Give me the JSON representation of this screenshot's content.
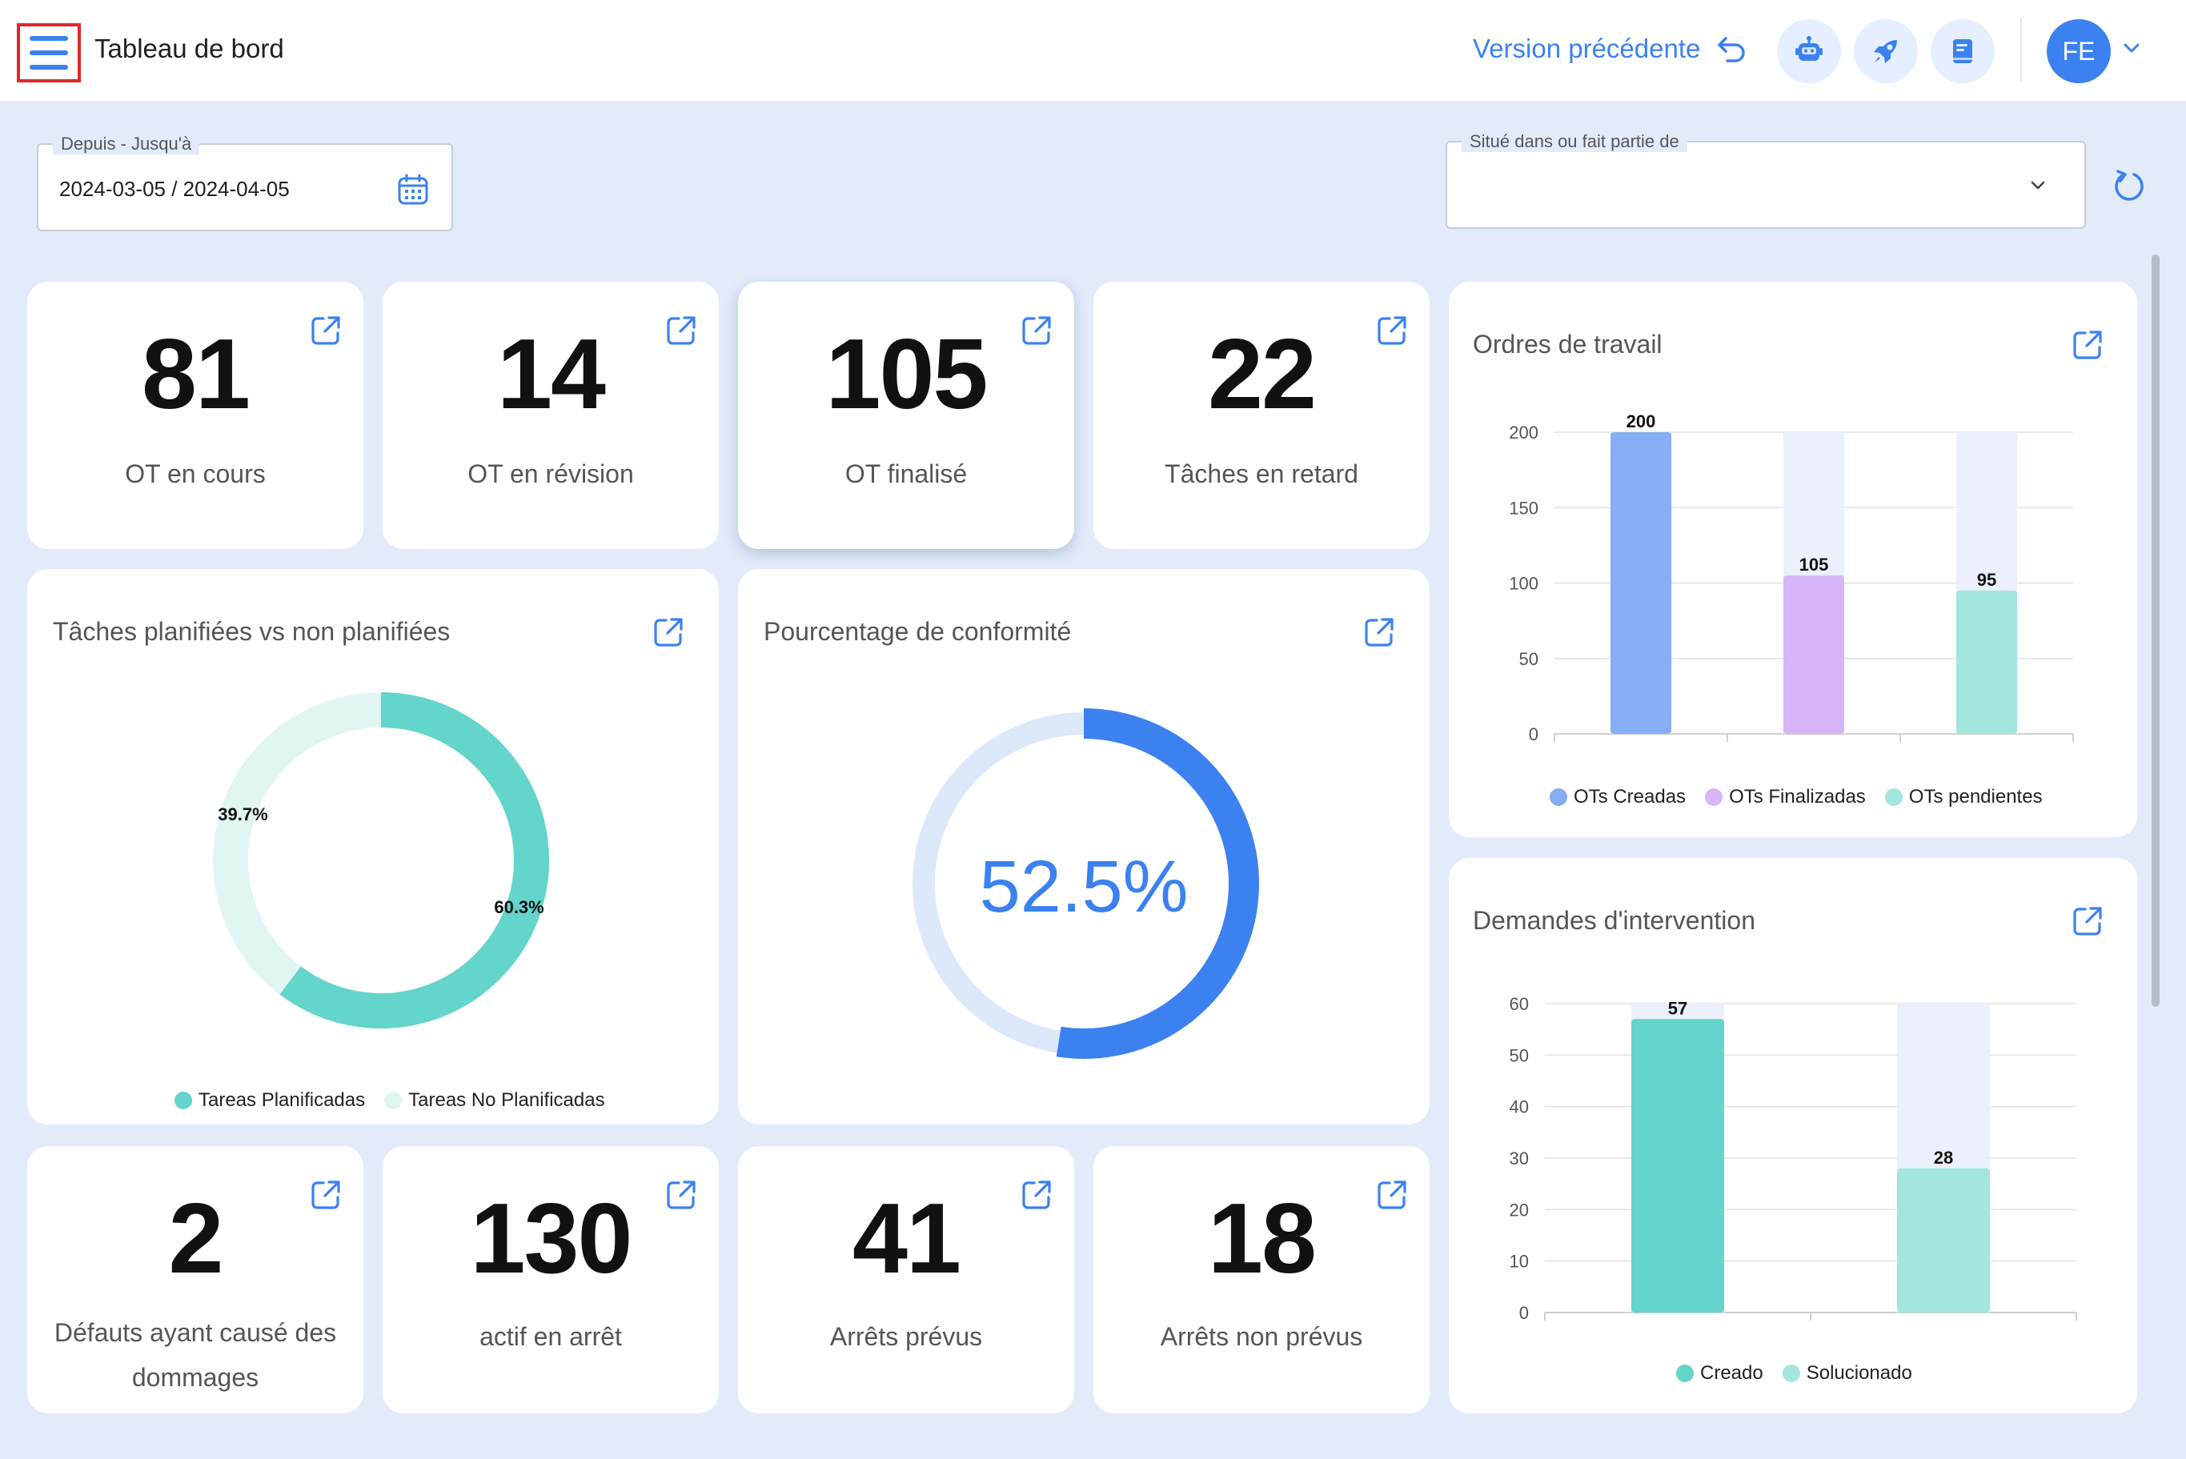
{
  "header": {
    "title": "Tableau de bord",
    "prev_version": "Version précédente",
    "avatar_initials": "FE",
    "menu_icon": "hamburger-menu-icon",
    "undo_icon": "undo-arrow-icon",
    "round_buttons": [
      "robot-icon",
      "rocket-icon",
      "book-icon"
    ]
  },
  "filters": {
    "date_range": {
      "label": "Depuis - Jusqu'à",
      "value": "2024-03-05 / 2024-04-05"
    },
    "location": {
      "label": "Situé dans ou fait partie de",
      "value": ""
    }
  },
  "kpis_top": [
    {
      "value": "81",
      "label": "OT en cours"
    },
    {
      "value": "14",
      "label": "OT en révision"
    },
    {
      "value": "105",
      "label": "OT finalisé"
    },
    {
      "value": "22",
      "label": "Tâches en retard"
    }
  ],
  "kpis_bottom": [
    {
      "value": "2",
      "label_line1": "Défauts ayant causé des",
      "label_line2": "dommages"
    },
    {
      "value": "130",
      "label": "actif en arrêt"
    },
    {
      "value": "41",
      "label": "Arrêts prévus"
    },
    {
      "value": "18",
      "label": "Arrêts non prévus"
    }
  ],
  "colors": {
    "accent": "#3b82f0",
    "teal": "#63d5cb",
    "teal_light": "#e1f5f3",
    "blue_bar": "#86aef5",
    "purple_bar": "#d8b5f9",
    "mint_bar": "#a3e6de",
    "track": "#ecf0fc",
    "gauge_track": "#dde8fb"
  },
  "planned_chart": {
    "title": "Tâches planifiées vs non planifiées",
    "legend": [
      "Tareas Planificadas",
      "Tareas No Planificadas"
    ]
  },
  "compliance": {
    "title": "Pourcentage de conformité",
    "value_text": "52.5%"
  },
  "work_orders_chart": {
    "title": "Ordres de travail",
    "legend": [
      "OTs Creadas",
      "OTs Finalizadas",
      "OTs pendientes"
    ]
  },
  "requests_chart": {
    "title": "Demandes d'intervention",
    "legend": [
      "Creado",
      "Solucionado"
    ]
  },
  "chart_data": [
    {
      "type": "pie",
      "title": "Tâches planifiées vs non planifiées",
      "categories": [
        "Tareas Planificadas",
        "Tareas No Planificadas"
      ],
      "values": [
        60.3,
        39.7
      ],
      "labels": [
        "60.3%",
        "39.7%"
      ]
    },
    {
      "type": "pie",
      "title": "Pourcentage de conformité",
      "categories": [
        ""
      ],
      "values": [
        52.5
      ],
      "labels": [
        "52.5%"
      ]
    },
    {
      "type": "bar",
      "title": "Ordres de travail",
      "categories": [
        "OTs Creadas",
        "OTs Finalizadas",
        "OTs pendientes"
      ],
      "values": [
        200,
        105,
        95
      ],
      "ylim": [
        0,
        200
      ],
      "yticks": [
        0,
        50,
        100,
        150,
        200
      ],
      "grid": true,
      "legend_position": "bottom"
    },
    {
      "type": "bar",
      "title": "Demandes d'intervention",
      "categories": [
        "Creado",
        "Solucionado"
      ],
      "values": [
        57,
        28
      ],
      "ylim": [
        0,
        60
      ],
      "yticks": [
        0,
        10,
        20,
        30,
        40,
        50,
        60
      ],
      "grid": true,
      "legend_position": "bottom"
    }
  ]
}
